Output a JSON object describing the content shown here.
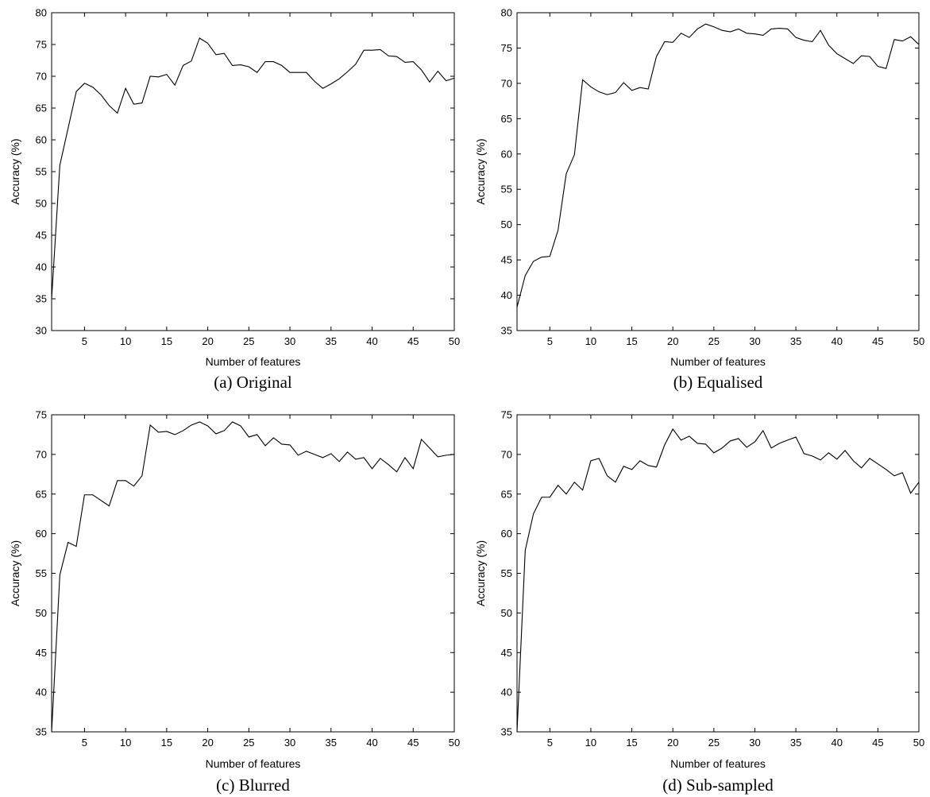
{
  "chart_data": [
    {
      "type": "line",
      "caption": "(a) Original",
      "xlabel": "Number of features",
      "ylabel": "Accuracy (%)",
      "xlim": [
        1,
        50
      ],
      "ylim": [
        30,
        80
      ],
      "xticks": [
        5,
        10,
        15,
        20,
        25,
        30,
        35,
        40,
        45,
        50
      ],
      "yticks": [
        30,
        35,
        40,
        45,
        50,
        55,
        60,
        65,
        70,
        75,
        80
      ],
      "grid": false,
      "line_color": "#000000",
      "series": [
        {
          "x": [
            1,
            2,
            3,
            4,
            5,
            6,
            7,
            8,
            9,
            10,
            11,
            12,
            13,
            14,
            15,
            16,
            17,
            18,
            19,
            20,
            21,
            22,
            23,
            24,
            25,
            26,
            27,
            28,
            29,
            30,
            31,
            32,
            33,
            34,
            35,
            36,
            37,
            38,
            39,
            40,
            41,
            42,
            43,
            44,
            45,
            46,
            47,
            48,
            49,
            50
          ],
          "values": [
            35.0,
            56.0,
            61.8,
            67.6,
            68.9,
            68.3,
            67.1,
            65.4,
            64.2,
            68.1,
            65.6,
            65.8,
            70.0,
            69.9,
            70.3,
            68.6,
            71.7,
            72.4,
            76.0,
            75.2,
            73.4,
            73.6,
            71.7,
            71.8,
            71.5,
            70.6,
            72.3,
            72.3,
            71.7,
            70.6,
            70.6,
            70.6,
            69.2,
            68.1,
            68.8,
            69.6,
            70.7,
            71.9,
            74.1,
            74.1,
            74.2,
            73.2,
            73.1,
            72.2,
            72.3,
            71.0,
            69.1,
            70.8,
            69.3,
            69.7
          ]
        }
      ]
    },
    {
      "type": "line",
      "caption": "(b) Equalised",
      "xlabel": "Number of features",
      "ylabel": "Accuracy (%)",
      "xlim": [
        1,
        50
      ],
      "ylim": [
        35,
        80
      ],
      "xticks": [
        5,
        10,
        15,
        20,
        25,
        30,
        35,
        40,
        45,
        50
      ],
      "yticks": [
        35,
        40,
        45,
        50,
        55,
        60,
        65,
        70,
        75,
        80
      ],
      "grid": false,
      "line_color": "#000000",
      "series": [
        {
          "x": [
            1,
            2,
            3,
            4,
            5,
            6,
            7,
            8,
            9,
            10,
            11,
            12,
            13,
            14,
            15,
            16,
            17,
            18,
            19,
            20,
            21,
            22,
            23,
            24,
            25,
            26,
            27,
            28,
            29,
            30,
            31,
            32,
            33,
            34,
            35,
            36,
            37,
            38,
            39,
            40,
            41,
            42,
            43,
            44,
            45,
            46,
            47,
            48,
            49,
            50
          ],
          "values": [
            38.3,
            42.8,
            44.8,
            45.4,
            45.5,
            49.2,
            57.2,
            59.9,
            70.5,
            69.5,
            68.8,
            68.4,
            68.7,
            70.1,
            69.0,
            69.4,
            69.2,
            73.8,
            75.9,
            75.8,
            77.1,
            76.5,
            77.7,
            78.4,
            78.0,
            77.5,
            77.3,
            77.7,
            77.1,
            77.0,
            76.8,
            77.7,
            77.8,
            77.7,
            76.5,
            76.1,
            75.9,
            77.5,
            75.4,
            74.2,
            73.5,
            72.8,
            73.9,
            73.8,
            72.4,
            72.1,
            76.2,
            76.0,
            76.6,
            75.5
          ]
        }
      ]
    },
    {
      "type": "line",
      "caption": "(c) Blurred",
      "xlabel": "Number of features",
      "ylabel": "Accuracy (%)",
      "xlim": [
        1,
        50
      ],
      "ylim": [
        35,
        75
      ],
      "xticks": [
        5,
        10,
        15,
        20,
        25,
        30,
        35,
        40,
        45,
        50
      ],
      "yticks": [
        35,
        40,
        45,
        50,
        55,
        60,
        65,
        70,
        75
      ],
      "grid": false,
      "line_color": "#000000",
      "series": [
        {
          "x": [
            1,
            2,
            3,
            4,
            5,
            6,
            7,
            8,
            9,
            10,
            11,
            12,
            13,
            14,
            15,
            16,
            17,
            18,
            19,
            20,
            21,
            22,
            23,
            24,
            25,
            26,
            27,
            28,
            29,
            30,
            31,
            32,
            33,
            34,
            35,
            36,
            37,
            38,
            39,
            40,
            41,
            42,
            43,
            44,
            45,
            46,
            47,
            48,
            49,
            50
          ],
          "values": [
            35.0,
            54.8,
            58.9,
            58.4,
            64.9,
            64.9,
            64.2,
            63.5,
            66.7,
            66.7,
            66.0,
            67.3,
            73.7,
            72.8,
            72.9,
            72.5,
            73.0,
            73.7,
            74.1,
            73.6,
            72.6,
            73.0,
            74.1,
            73.6,
            72.2,
            72.5,
            71.1,
            72.1,
            71.3,
            71.2,
            69.9,
            70.4,
            70.0,
            69.6,
            70.1,
            69.1,
            70.3,
            69.4,
            69.6,
            68.2,
            69.5,
            68.7,
            67.8,
            69.6,
            68.2,
            71.9,
            70.8,
            69.7,
            69.9,
            70.0
          ]
        }
      ]
    },
    {
      "type": "line",
      "caption": "(d) Sub-sampled",
      "xlabel": "Number of features",
      "ylabel": "Accuracy (%)",
      "xlim": [
        1,
        50
      ],
      "ylim": [
        35,
        75
      ],
      "xticks": [
        5,
        10,
        15,
        20,
        25,
        30,
        35,
        40,
        45,
        50
      ],
      "yticks": [
        35,
        40,
        45,
        50,
        55,
        60,
        65,
        70,
        75
      ],
      "grid": false,
      "line_color": "#000000",
      "series": [
        {
          "x": [
            1,
            2,
            3,
            4,
            5,
            6,
            7,
            8,
            9,
            10,
            11,
            12,
            13,
            14,
            15,
            16,
            17,
            18,
            19,
            20,
            21,
            22,
            23,
            24,
            25,
            26,
            27,
            28,
            29,
            30,
            31,
            32,
            33,
            34,
            35,
            36,
            37,
            38,
            39,
            40,
            41,
            42,
            43,
            44,
            45,
            46,
            47,
            48,
            49,
            50
          ],
          "values": [
            35.0,
            57.9,
            62.5,
            64.6,
            64.6,
            66.1,
            65.0,
            66.5,
            65.5,
            69.2,
            69.5,
            67.3,
            66.5,
            68.5,
            68.1,
            69.2,
            68.6,
            68.4,
            71.2,
            73.2,
            71.8,
            72.3,
            71.4,
            71.3,
            70.2,
            70.8,
            71.7,
            72.0,
            70.9,
            71.6,
            73.0,
            70.8,
            71.4,
            71.8,
            72.2,
            70.1,
            69.8,
            69.3,
            70.2,
            69.4,
            70.5,
            69.2,
            68.3,
            69.5,
            68.8,
            68.1,
            67.3,
            67.7,
            65.1,
            66.5
          ]
        }
      ]
    }
  ]
}
